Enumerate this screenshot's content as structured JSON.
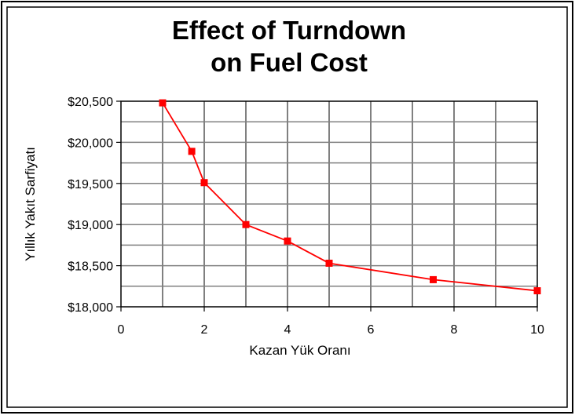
{
  "chart_data": {
    "type": "line",
    "title": [
      "Effect of Turndown",
      "on Fuel Cost"
    ],
    "xlabel": "Kazan Yük Oranı",
    "ylabel": "Yıllık Yakıt Sarfiyatı",
    "xlim": [
      0,
      10
    ],
    "ylim": [
      18000,
      20500
    ],
    "xticks": [
      0,
      2,
      4,
      6,
      8,
      10
    ],
    "xtick_labels": [
      "0",
      "2",
      "4",
      "6",
      "8",
      "10"
    ],
    "yticks": [
      18000,
      18500,
      19000,
      19500,
      20000,
      20500
    ],
    "ytick_labels": [
      "$18,000",
      "$18,500",
      "$19,000",
      "$19,500",
      "$20,000",
      "$20,500"
    ],
    "grid": true,
    "series": [
      {
        "color": "#ff0000",
        "marker": "square",
        "x": [
          1,
          1.7,
          2,
          3,
          4,
          5,
          7.5,
          10
        ],
        "y": [
          20480,
          19890,
          19510,
          19000,
          18800,
          18530,
          18330,
          18195
        ]
      }
    ]
  }
}
